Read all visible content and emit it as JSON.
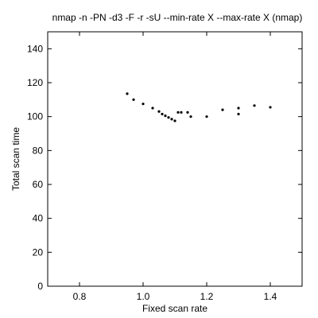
{
  "chart_data": {
    "type": "scatter",
    "title": "nmap -n -PN -d3 -F -r -sU --min-rate X --max-rate X (nmap)",
    "xlabel": "Fixed scan rate",
    "ylabel": "Total scan time",
    "xlim": [
      0.7,
      1.5
    ],
    "ylim": [
      0,
      150
    ],
    "xticks": [
      0.8,
      1.0,
      1.2,
      1.4
    ],
    "xtick_labels": [
      "0.8",
      "1.0",
      "1.2",
      "1.4"
    ],
    "yticks": [
      0,
      20,
      40,
      60,
      80,
      100,
      120,
      140
    ],
    "ytick_labels": [
      "0",
      "20",
      "40",
      "60",
      "80",
      "100",
      "120",
      "140"
    ],
    "grid": false,
    "marker_color": "#000000",
    "series": [
      {
        "x": [
          0.95,
          0.97,
          1.0,
          1.03,
          1.05,
          1.06,
          1.07,
          1.08,
          1.09,
          1.1,
          1.11,
          1.12,
          1.14,
          1.15,
          1.2,
          1.25,
          1.3,
          1.3,
          1.35,
          1.4
        ],
        "y": [
          113.5,
          110,
          107.5,
          105,
          103,
          101.5,
          100.5,
          99.5,
          98.5,
          97.5,
          102.5,
          102.5,
          102.5,
          100,
          100,
          104,
          105,
          101.5,
          106.5,
          105.5
        ]
      }
    ]
  }
}
